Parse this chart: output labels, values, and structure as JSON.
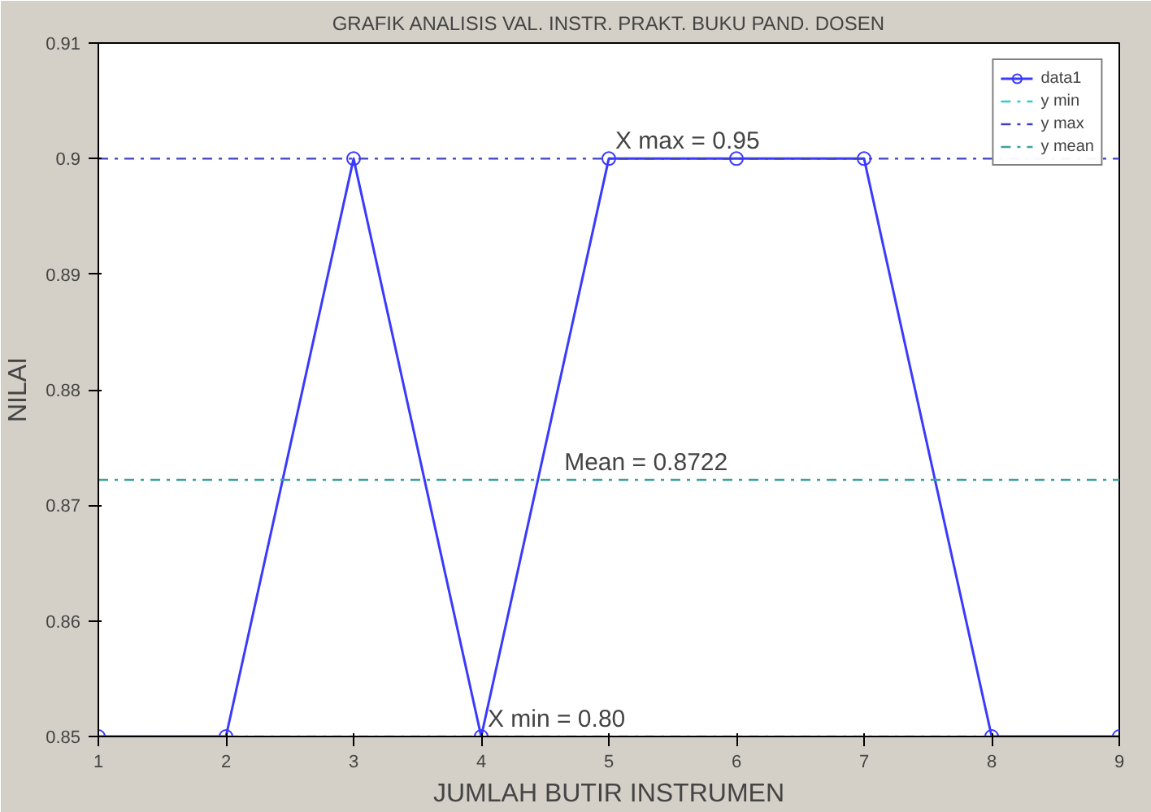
{
  "chart_data": {
    "type": "line",
    "title": "GRAFIK ANALISIS VAL. INSTR. PRAKT. BUKU PAND. DOSEN",
    "xlabel": "JUMLAH BUTIR INSTRUMEN",
    "ylabel": "NILAI",
    "x": [
      1,
      2,
      3,
      4,
      5,
      6,
      7,
      8,
      9
    ],
    "series": [
      {
        "name": "data1",
        "color": "#3a3aff",
        "values": [
          0.85,
          0.85,
          0.9,
          0.85,
          0.9,
          0.9,
          0.9,
          0.85,
          0.85
        ]
      }
    ],
    "xlim": [
      1,
      9
    ],
    "ylim": [
      0.85,
      0.91
    ],
    "xticks": [
      1,
      2,
      3,
      4,
      5,
      6,
      7,
      8,
      9
    ],
    "yticks": [
      0.85,
      0.86,
      0.87,
      0.88,
      0.89,
      0.9,
      0.91
    ],
    "ref_lines": [
      {
        "axis": "y",
        "value": 0.85,
        "label": "y min",
        "color": "#33cccc",
        "line_style": "dashdot"
      },
      {
        "axis": "y",
        "value": 0.9,
        "label": "y max",
        "color": "#4040c0",
        "line_style": "dashdot"
      },
      {
        "axis": "y",
        "value": 0.8722,
        "label": "y mean",
        "color": "#40a0a0",
        "line_style": "dashdot"
      }
    ],
    "annotations": [
      {
        "text": "X max = 0.95",
        "x": 5,
        "y": 0.9
      },
      {
        "text": "Mean = 0.8722",
        "x": 4.6,
        "y": 0.8722
      },
      {
        "text": "X min = 0.80",
        "x": 4,
        "y": 0.85
      }
    ],
    "marker": "circle",
    "line_style": "solid",
    "grid": false,
    "legend": "top right"
  }
}
